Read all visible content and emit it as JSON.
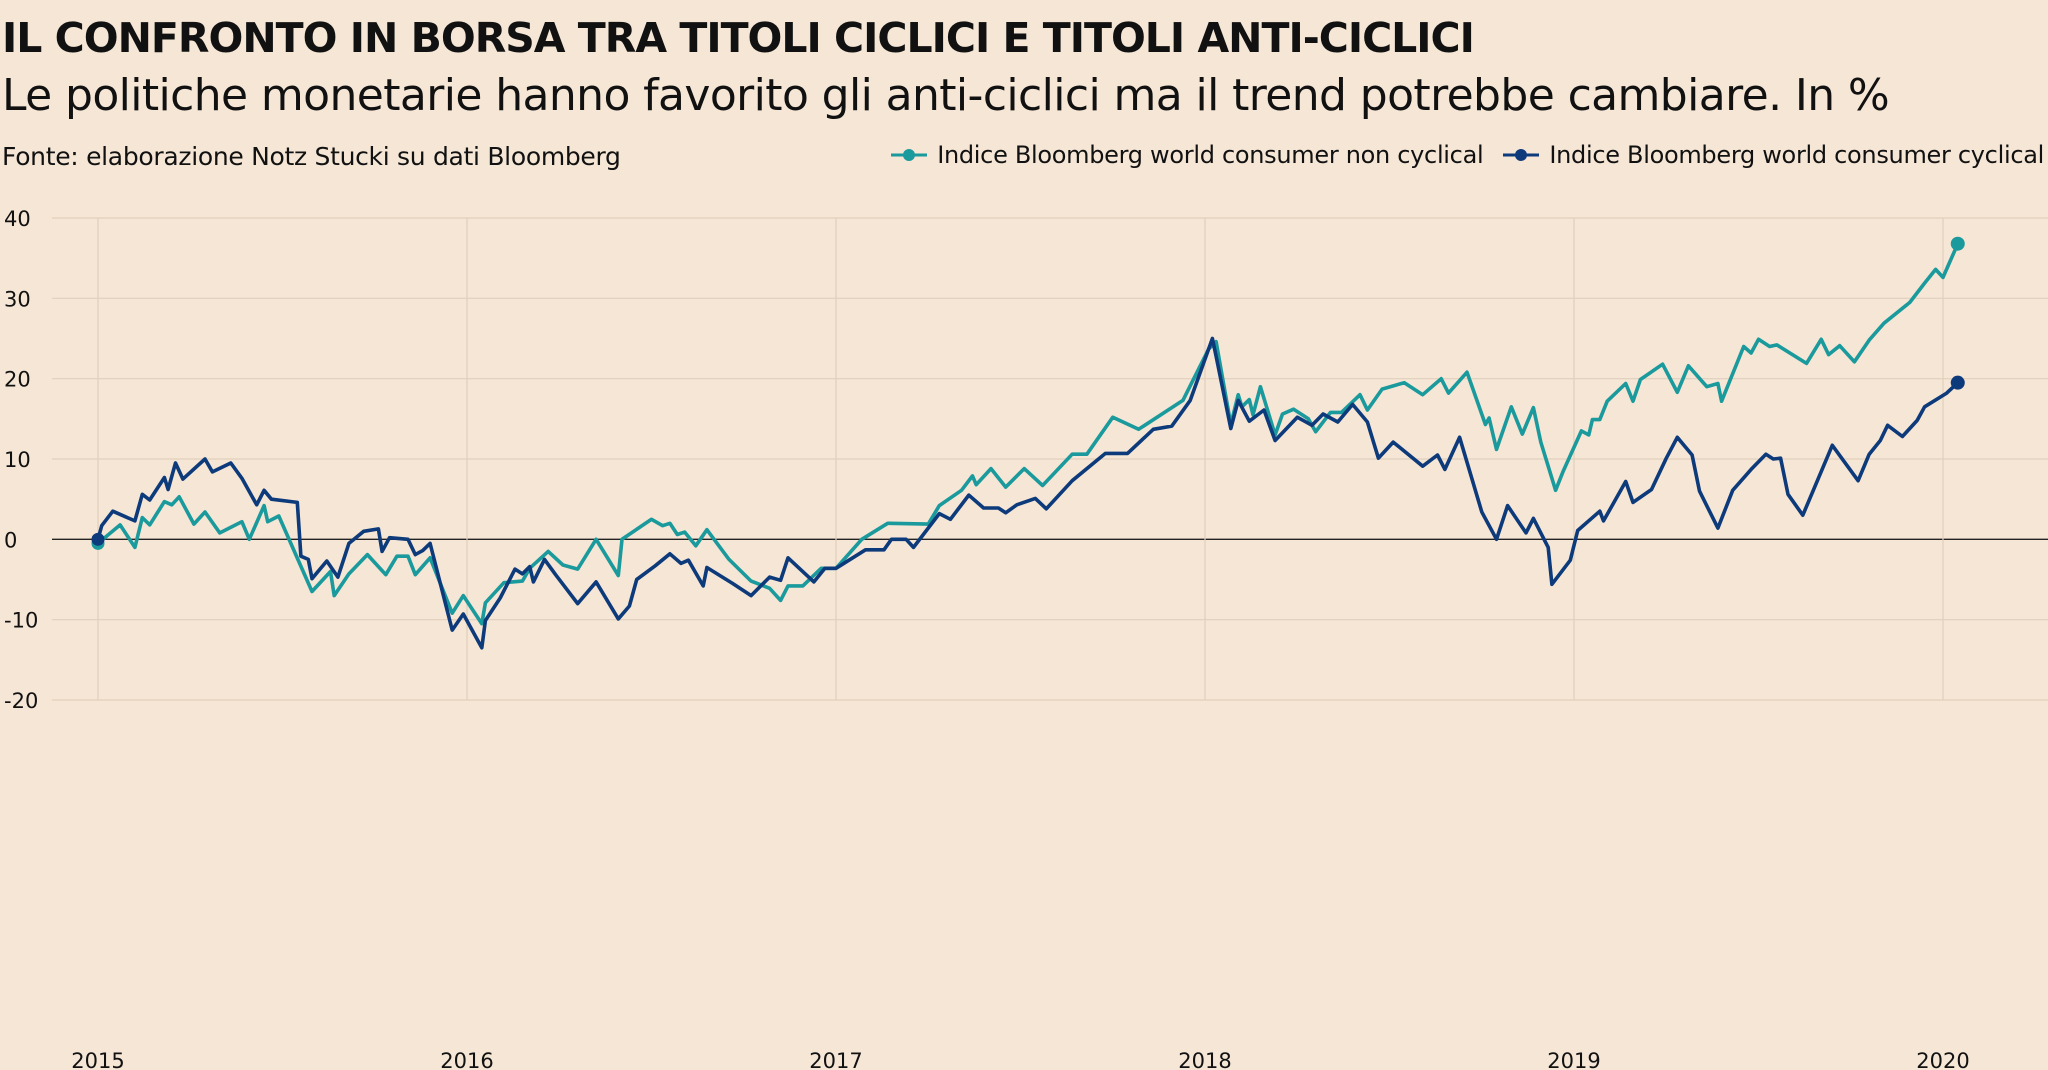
{
  "title": "IL CONFRONTO IN BORSA TRA TITOLI CICLICI E TITOLI ANTI-CICLICI",
  "subtitle": "Le politiche monetarie hanno favorito gli anti-ciclici ma il trend potrebbe cambiare. In %",
  "source": "Fonte: elaborazione Notz Stucki su dati Bloomberg",
  "chart_data": {
    "type": "line",
    "ylim": [
      -20,
      40
    ],
    "yticks": [
      40,
      30,
      20,
      10,
      0,
      -10,
      -20
    ],
    "xlim": [
      2015,
      2020
    ],
    "xticks": [
      "2015",
      "2016",
      "2017",
      "2018",
      "2019",
      "2020"
    ],
    "grid": true,
    "legend_position": "top-right",
    "series": [
      {
        "name": "Indice Bloomberg world consumer non cyclical",
        "color": "#1a9a9c",
        "points": [
          [
            2015.0,
            -0.5
          ],
          [
            2015.06,
            1.8
          ],
          [
            2015.1,
            -1.0
          ],
          [
            2015.12,
            2.7
          ],
          [
            2015.14,
            1.8
          ],
          [
            2015.18,
            4.7
          ],
          [
            2015.2,
            4.3
          ],
          [
            2015.22,
            5.3
          ],
          [
            2015.26,
            1.9
          ],
          [
            2015.29,
            3.4
          ],
          [
            2015.33,
            0.8
          ],
          [
            2015.39,
            2.2
          ],
          [
            2015.41,
            0
          ],
          [
            2015.45,
            4.2
          ],
          [
            2015.46,
            2.2
          ],
          [
            2015.49,
            2.9
          ],
          [
            2015.58,
            -6.5
          ],
          [
            2015.63,
            -4.0
          ],
          [
            2015.64,
            -7.0
          ],
          [
            2015.68,
            -4.3
          ],
          [
            2015.73,
            -1.9
          ],
          [
            2015.78,
            -4.4
          ],
          [
            2015.81,
            -2.1
          ],
          [
            2015.84,
            -2.1
          ],
          [
            2015.86,
            -4.4
          ],
          [
            2015.9,
            -2.3
          ],
          [
            2015.96,
            -9.2
          ],
          [
            2015.99,
            -7.0
          ],
          [
            2016.04,
            -10.5
          ],
          [
            2016.05,
            -7.9
          ],
          [
            2016.1,
            -5.4
          ],
          [
            2016.15,
            -5.2
          ],
          [
            2016.17,
            -3.6
          ],
          [
            2016.22,
            -1.5
          ],
          [
            2016.26,
            -3.2
          ],
          [
            2016.3,
            -3.7
          ],
          [
            2016.35,
            0
          ],
          [
            2016.41,
            -4.5
          ],
          [
            2016.42,
            0
          ],
          [
            2016.5,
            2.5
          ],
          [
            2016.53,
            1.7
          ],
          [
            2016.55,
            2.0
          ],
          [
            2016.57,
            0.6
          ],
          [
            2016.59,
            0.9
          ],
          [
            2016.62,
            -0.8
          ],
          [
            2016.65,
            1.2
          ],
          [
            2016.71,
            -2.5
          ],
          [
            2016.77,
            -5.2
          ],
          [
            2016.82,
            -6.1
          ],
          [
            2016.85,
            -7.6
          ],
          [
            2016.87,
            -5.8
          ],
          [
            2016.91,
            -5.8
          ],
          [
            2016.96,
            -3.6
          ],
          [
            2017.0,
            -3.6
          ],
          [
            2017.07,
            0
          ],
          [
            2017.14,
            2.0
          ],
          [
            2017.25,
            1.9
          ],
          [
            2017.28,
            4.2
          ],
          [
            2017.34,
            6.1
          ],
          [
            2017.37,
            7.9
          ],
          [
            2017.38,
            6.8
          ],
          [
            2017.42,
            8.8
          ],
          [
            2017.46,
            6.5
          ],
          [
            2017.51,
            8.8
          ],
          [
            2017.56,
            6.7
          ],
          [
            2017.64,
            10.6
          ],
          [
            2017.68,
            10.6
          ],
          [
            2017.75,
            15.2
          ],
          [
            2017.82,
            13.7
          ],
          [
            2017.94,
            17.3
          ],
          [
            2018.01,
            23.7
          ],
          [
            2018.03,
            24.6
          ],
          [
            2018.07,
            14.3
          ],
          [
            2018.09,
            18.0
          ],
          [
            2018.1,
            16.5
          ],
          [
            2018.12,
            17.4
          ],
          [
            2018.13,
            15.5
          ],
          [
            2018.15,
            19.0
          ],
          [
            2018.19,
            13.0
          ],
          [
            2018.21,
            15.6
          ],
          [
            2018.24,
            16.2
          ],
          [
            2018.28,
            15.0
          ],
          [
            2018.3,
            13.4
          ],
          [
            2018.34,
            15.8
          ],
          [
            2018.37,
            15.8
          ],
          [
            2018.42,
            18.0
          ],
          [
            2018.44,
            16.1
          ],
          [
            2018.48,
            18.7
          ],
          [
            2018.54,
            19.5
          ],
          [
            2018.59,
            18.0
          ],
          [
            2018.64,
            20.0
          ],
          [
            2018.66,
            18.2
          ],
          [
            2018.71,
            20.8
          ],
          [
            2018.76,
            14.3
          ],
          [
            2018.77,
            15.1
          ],
          [
            2018.79,
            11.2
          ],
          [
            2018.83,
            16.5
          ],
          [
            2018.86,
            13.1
          ],
          [
            2018.89,
            16.4
          ],
          [
            2018.91,
            12.1
          ],
          [
            2018.95,
            6.1
          ],
          [
            2018.97,
            8.4
          ],
          [
            2019.02,
            13.5
          ],
          [
            2019.04,
            13.0
          ],
          [
            2019.05,
            14.9
          ],
          [
            2019.07,
            14.9
          ],
          [
            2019.09,
            17.2
          ],
          [
            2019.14,
            19.4
          ],
          [
            2019.16,
            17.2
          ],
          [
            2019.18,
            19.9
          ],
          [
            2019.24,
            21.8
          ],
          [
            2019.28,
            18.3
          ],
          [
            2019.31,
            21.6
          ],
          [
            2019.36,
            19.0
          ],
          [
            2019.39,
            19.4
          ],
          [
            2019.4,
            17.2
          ],
          [
            2019.46,
            24.0
          ],
          [
            2019.48,
            23.2
          ],
          [
            2019.5,
            24.9
          ],
          [
            2019.53,
            24.0
          ],
          [
            2019.55,
            24.2
          ],
          [
            2019.63,
            21.9
          ],
          [
            2019.67,
            24.9
          ],
          [
            2019.69,
            23.0
          ],
          [
            2019.72,
            24.1
          ],
          [
            2019.76,
            22.1
          ],
          [
            2019.8,
            24.8
          ],
          [
            2019.84,
            26.9
          ],
          [
            2019.91,
            29.5
          ],
          [
            2019.95,
            31.9
          ],
          [
            2019.98,
            33.6
          ],
          [
            2020.0,
            32.6
          ],
          [
            2020.04,
            36.8
          ]
        ]
      },
      {
        "name": "Indice Bloomberg world consumer cyclical",
        "color": "#0d3a7a",
        "points": [
          [
            2015.0,
            0
          ],
          [
            2015.01,
            1.7
          ],
          [
            2015.04,
            3.5
          ],
          [
            2015.1,
            2.3
          ],
          [
            2015.12,
            5.6
          ],
          [
            2015.14,
            4.9
          ],
          [
            2015.18,
            7.7
          ],
          [
            2015.19,
            6.2
          ],
          [
            2015.21,
            9.5
          ],
          [
            2015.23,
            7.5
          ],
          [
            2015.29,
            10.0
          ],
          [
            2015.31,
            8.4
          ],
          [
            2015.36,
            9.5
          ],
          [
            2015.39,
            7.6
          ],
          [
            2015.43,
            4.3
          ],
          [
            2015.45,
            6.1
          ],
          [
            2015.47,
            5.0
          ],
          [
            2015.54,
            4.6
          ],
          [
            2015.55,
            -2.1
          ],
          [
            2015.57,
            -2.5
          ],
          [
            2015.58,
            -4.9
          ],
          [
            2015.62,
            -2.7
          ],
          [
            2015.65,
            -4.7
          ],
          [
            2015.68,
            -0.5
          ],
          [
            2015.72,
            1.0
          ],
          [
            2015.76,
            1.3
          ],
          [
            2015.77,
            -1.5
          ],
          [
            2015.79,
            0.2
          ],
          [
            2015.84,
            0
          ],
          [
            2015.86,
            -1.9
          ],
          [
            2015.88,
            -1.4
          ],
          [
            2015.9,
            -0.5
          ],
          [
            2015.96,
            -11.3
          ],
          [
            2015.99,
            -9.3
          ],
          [
            2016.04,
            -13.5
          ],
          [
            2016.05,
            -10.1
          ],
          [
            2016.09,
            -7.3
          ],
          [
            2016.13,
            -3.7
          ],
          [
            2016.15,
            -4.3
          ],
          [
            2016.17,
            -3.4
          ],
          [
            2016.18,
            -5.3
          ],
          [
            2016.21,
            -2.5
          ],
          [
            2016.24,
            -4.4
          ],
          [
            2016.3,
            -8.0
          ],
          [
            2016.35,
            -5.3
          ],
          [
            2016.41,
            -9.9
          ],
          [
            2016.44,
            -8.3
          ],
          [
            2016.46,
            -5.0
          ],
          [
            2016.51,
            -3.3
          ],
          [
            2016.55,
            -1.8
          ],
          [
            2016.58,
            -3.0
          ],
          [
            2016.6,
            -2.6
          ],
          [
            2016.64,
            -5.8
          ],
          [
            2016.65,
            -3.5
          ],
          [
            2016.72,
            -5.5
          ],
          [
            2016.77,
            -7.0
          ],
          [
            2016.82,
            -4.7
          ],
          [
            2016.85,
            -5.1
          ],
          [
            2016.87,
            -2.3
          ],
          [
            2016.94,
            -5.3
          ],
          [
            2016.97,
            -3.6
          ],
          [
            2017.0,
            -3.6
          ],
          [
            2017.08,
            -1.3
          ],
          [
            2017.13,
            -1.3
          ],
          [
            2017.15,
            0
          ],
          [
            2017.19,
            0
          ],
          [
            2017.21,
            -1.0
          ],
          [
            2017.28,
            3.2
          ],
          [
            2017.31,
            2.5
          ],
          [
            2017.36,
            5.5
          ],
          [
            2017.4,
            3.9
          ],
          [
            2017.44,
            3.9
          ],
          [
            2017.46,
            3.3
          ],
          [
            2017.49,
            4.3
          ],
          [
            2017.54,
            5.1
          ],
          [
            2017.57,
            3.8
          ],
          [
            2017.64,
            7.3
          ],
          [
            2017.73,
            10.7
          ],
          [
            2017.79,
            10.7
          ],
          [
            2017.86,
            13.7
          ],
          [
            2017.91,
            14.1
          ],
          [
            2017.96,
            17.3
          ],
          [
            2018.02,
            25.0
          ],
          [
            2018.03,
            22.8
          ],
          [
            2018.07,
            13.8
          ],
          [
            2018.09,
            17.3
          ],
          [
            2018.12,
            14.7
          ],
          [
            2018.16,
            16.1
          ],
          [
            2018.19,
            12.3
          ],
          [
            2018.25,
            15.2
          ],
          [
            2018.29,
            14.2
          ],
          [
            2018.32,
            15.6
          ],
          [
            2018.36,
            14.6
          ],
          [
            2018.4,
            16.8
          ],
          [
            2018.44,
            14.6
          ],
          [
            2018.47,
            10.1
          ],
          [
            2018.51,
            12.1
          ],
          [
            2018.59,
            9.1
          ],
          [
            2018.63,
            10.5
          ],
          [
            2018.65,
            8.7
          ],
          [
            2018.69,
            12.7
          ],
          [
            2018.75,
            3.4
          ],
          [
            2018.79,
            0
          ],
          [
            2018.82,
            4.2
          ],
          [
            2018.87,
            0.8
          ],
          [
            2018.89,
            2.6
          ],
          [
            2018.93,
            -1.0
          ],
          [
            2018.94,
            -5.6
          ],
          [
            2018.99,
            -2.6
          ],
          [
            2019.01,
            1.1
          ],
          [
            2019.07,
            3.5
          ],
          [
            2019.08,
            2.3
          ],
          [
            2019.14,
            7.2
          ],
          [
            2019.16,
            4.6
          ],
          [
            2019.21,
            6.2
          ],
          [
            2019.25,
            10.1
          ],
          [
            2019.28,
            12.7
          ],
          [
            2019.32,
            10.5
          ],
          [
            2019.34,
            6.0
          ],
          [
            2019.39,
            1.4
          ],
          [
            2019.43,
            6.1
          ],
          [
            2019.48,
            8.7
          ],
          [
            2019.52,
            10.6
          ],
          [
            2019.54,
            10.0
          ],
          [
            2019.56,
            10.1
          ],
          [
            2019.58,
            5.6
          ],
          [
            2019.62,
            3.0
          ],
          [
            2019.7,
            11.7
          ],
          [
            2019.77,
            7.3
          ],
          [
            2019.8,
            10.6
          ],
          [
            2019.83,
            12.3
          ],
          [
            2019.85,
            14.2
          ],
          [
            2019.89,
            12.8
          ],
          [
            2019.93,
            14.8
          ],
          [
            2019.95,
            16.5
          ],
          [
            2020.01,
            18.2
          ],
          [
            2020.04,
            19.5
          ]
        ]
      }
    ]
  }
}
